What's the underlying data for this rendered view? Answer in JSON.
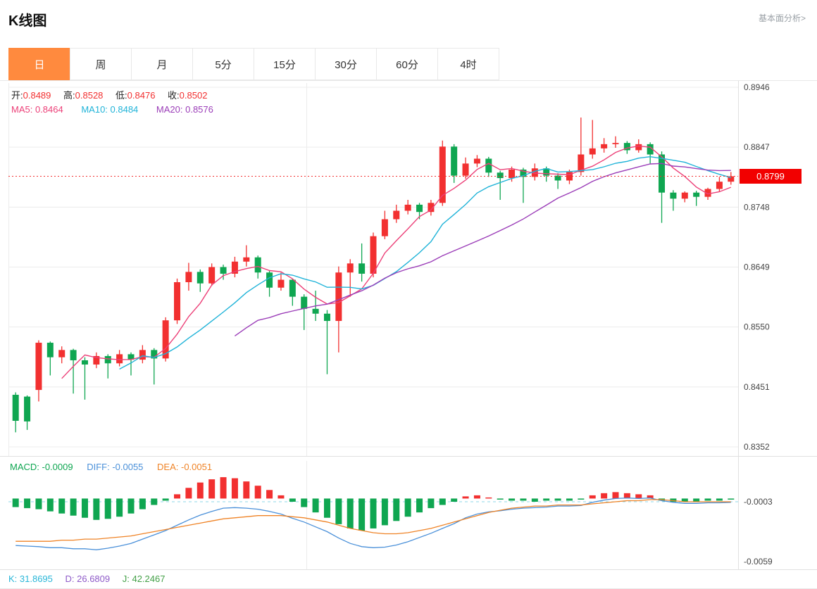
{
  "header": {
    "title": "K线图",
    "analysis_link": "基本面分析>"
  },
  "tabs": [
    {
      "label": "日",
      "active": true
    },
    {
      "label": "周",
      "active": false
    },
    {
      "label": "月",
      "active": false
    },
    {
      "label": "5分",
      "active": false
    },
    {
      "label": "15分",
      "active": false
    },
    {
      "label": "30分",
      "active": false
    },
    {
      "label": "60分",
      "active": false
    },
    {
      "label": "4时",
      "active": false
    }
  ],
  "ohlc_legend": {
    "open_label": "开:",
    "open": "0.8489",
    "high_label": "高:",
    "high": "0.8528",
    "low_label": "低:",
    "low": "0.8476",
    "close_label": "收:",
    "close": "0.8502"
  },
  "ma_legend": {
    "ma5": "MA5: 0.8464",
    "ma10": "MA10: 0.8484",
    "ma20": "MA20: 0.8576"
  },
  "macd_legend": {
    "macd": "MACD: -0.0009",
    "diff": "DIFF: -0.0055",
    "dea": "DEA: -0.0051"
  },
  "kdj_legend": {
    "k": "K: 31.8695",
    "d": "D: 26.6809",
    "j": "J: 42.2467"
  },
  "colors": {
    "up": "#f23030",
    "down": "#0fa651",
    "ma5": "#ec4078",
    "ma10": "#1fb3d8",
    "ma20": "#9b3db8",
    "diff": "#4a90d9",
    "dea": "#ef8326",
    "macd_text": "#0fa651",
    "price_tag": "#f20000",
    "price_line": "#f23030",
    "kdj_k": "#29b6d8",
    "kdj_d": "#8e5ac8",
    "kdj_j": "#43a047",
    "tab_active": "#ff8a3e",
    "grid": "#ececec",
    "border": "#e0e0e0",
    "axis_text": "#444444",
    "dash_ref": "#8fd8e8"
  },
  "chart_data": {
    "type": "candlestick",
    "title": "K线图",
    "panels": [
      "price+MA(5,10,20)",
      "MACD"
    ],
    "legend_position": "top-left",
    "grid": true,
    "main": {
      "y_ticks": [
        0.8946,
        0.8847,
        0.8748,
        0.8649,
        0.855,
        0.8451,
        0.8352
      ],
      "last_price": 0.8799,
      "ma_periods": [
        5,
        10,
        20
      ],
      "candles": [
        [
          0.8438,
          0.8442,
          0.8376,
          0.8395
        ],
        [
          0.8435,
          0.8437,
          0.838,
          0.8394
        ],
        [
          0.8446,
          0.8528,
          0.8427,
          0.8524
        ],
        [
          0.8524,
          0.8526,
          0.847,
          0.85
        ],
        [
          0.85,
          0.8518,
          0.849,
          0.8512
        ],
        [
          0.8512,
          0.8514,
          0.844,
          0.8495
        ],
        [
          0.8495,
          0.85,
          0.843,
          0.8488
        ],
        [
          0.8488,
          0.8508,
          0.8482,
          0.8502
        ],
        [
          0.8502,
          0.8505,
          0.8465,
          0.849
        ],
        [
          0.849,
          0.8512,
          0.8485,
          0.8505
        ],
        [
          0.8505,
          0.8508,
          0.847,
          0.8496
        ],
        [
          0.8496,
          0.852,
          0.849,
          0.8512
        ],
        [
          0.8512,
          0.8515,
          0.8455,
          0.8498
        ],
        [
          0.8498,
          0.8566,
          0.8493,
          0.8561
        ],
        [
          0.8561,
          0.863,
          0.8555,
          0.8624
        ],
        [
          0.8624,
          0.8656,
          0.861,
          0.8641
        ],
        [
          0.8641,
          0.8645,
          0.8608,
          0.8622
        ],
        [
          0.8622,
          0.8655,
          0.8618,
          0.8649
        ],
        [
          0.8649,
          0.8653,
          0.8628,
          0.8638
        ],
        [
          0.8638,
          0.8666,
          0.8632,
          0.8658
        ],
        [
          0.8658,
          0.8685,
          0.865,
          0.8665
        ],
        [
          0.8665,
          0.8668,
          0.863,
          0.864
        ],
        [
          0.864,
          0.8643,
          0.86,
          0.8615
        ],
        [
          0.8615,
          0.864,
          0.861,
          0.8628
        ],
        [
          0.8628,
          0.863,
          0.8585,
          0.86
        ],
        [
          0.86,
          0.8604,
          0.8545,
          0.858
        ],
        [
          0.858,
          0.861,
          0.856,
          0.8572
        ],
        [
          0.8572,
          0.8578,
          0.8472,
          0.856
        ],
        [
          0.856,
          0.865,
          0.8508,
          0.864
        ],
        [
          0.864,
          0.8662,
          0.86,
          0.8655
        ],
        [
          0.8655,
          0.8688,
          0.8625,
          0.8638
        ],
        [
          0.8638,
          0.8706,
          0.8632,
          0.87
        ],
        [
          0.87,
          0.8742,
          0.8695,
          0.8728
        ],
        [
          0.8728,
          0.8752,
          0.8722,
          0.8742
        ],
        [
          0.8742,
          0.876,
          0.8736,
          0.8752
        ],
        [
          0.8752,
          0.8755,
          0.8728,
          0.874
        ],
        [
          0.874,
          0.876,
          0.8734,
          0.8755
        ],
        [
          0.8755,
          0.8858,
          0.875,
          0.8848
        ],
        [
          0.8848,
          0.8852,
          0.8788,
          0.88
        ],
        [
          0.88,
          0.883,
          0.8795,
          0.882
        ],
        [
          0.882,
          0.8834,
          0.8814,
          0.8828
        ],
        [
          0.8828,
          0.8831,
          0.8798,
          0.8805
        ],
        [
          0.8805,
          0.8808,
          0.876,
          0.8796
        ],
        [
          0.8796,
          0.8815,
          0.879,
          0.881
        ],
        [
          0.881,
          0.8813,
          0.8755,
          0.8798
        ],
        [
          0.8798,
          0.882,
          0.8792,
          0.8812
        ],
        [
          0.8812,
          0.8815,
          0.879,
          0.88
        ],
        [
          0.88,
          0.8804,
          0.8778,
          0.8792
        ],
        [
          0.8792,
          0.881,
          0.8786,
          0.8806
        ],
        [
          0.8806,
          0.8896,
          0.88,
          0.8835
        ],
        [
          0.8835,
          0.8892,
          0.8828,
          0.8845
        ],
        [
          0.8845,
          0.8862,
          0.8838,
          0.8852
        ],
        [
          0.8852,
          0.8865,
          0.8846,
          0.8854
        ],
        [
          0.8854,
          0.8857,
          0.8836,
          0.8842
        ],
        [
          0.8842,
          0.886,
          0.8838,
          0.8852
        ],
        [
          0.8852,
          0.8855,
          0.882,
          0.8835
        ],
        [
          0.8835,
          0.884,
          0.8722,
          0.8772
        ],
        [
          0.8772,
          0.8776,
          0.8742,
          0.8762
        ],
        [
          0.8762,
          0.8774,
          0.8756,
          0.8772
        ],
        [
          0.8772,
          0.8775,
          0.875,
          0.8765
        ],
        [
          0.8765,
          0.878,
          0.876,
          0.8778
        ],
        [
          0.8778,
          0.8798,
          0.8774,
          0.879
        ],
        [
          0.879,
          0.8806,
          0.8785,
          0.8799
        ]
      ]
    },
    "macd": {
      "y_ticks": [
        -0.0003,
        -0.0059
      ],
      "unit": 0.0001,
      "reference_level": -0.0003,
      "hist": [
        -8,
        -9,
        -10,
        -12,
        -14,
        -16,
        -18,
        -20,
        -19,
        -17,
        -14,
        -10,
        -6,
        -2,
        4,
        10,
        15,
        18,
        20,
        19,
        16,
        12,
        8,
        3,
        -3,
        -8,
        -13,
        -18,
        -24,
        -28,
        -30,
        -28,
        -25,
        -21,
        -17,
        -13,
        -9,
        -6,
        -3,
        2,
        3,
        1,
        -1,
        -2,
        -2,
        -3,
        -2,
        -2,
        -2,
        -1,
        3,
        5,
        6,
        5,
        4,
        3,
        -2,
        -3,
        -3,
        -3,
        -2,
        -2,
        -1
      ],
      "diff": [
        -44,
        -44.5,
        -45,
        -46,
        -46,
        -47,
        -47,
        -48,
        -46.5,
        -44.5,
        -42,
        -38,
        -34,
        -30,
        -25,
        -20,
        -15.5,
        -12,
        -9,
        -8.5,
        -9,
        -10,
        -12,
        -14.5,
        -18.5,
        -22,
        -26.5,
        -31,
        -37,
        -42,
        -45,
        -46,
        -45.5,
        -43.5,
        -40.5,
        -36.5,
        -32.5,
        -28,
        -23.5,
        -18,
        -14.5,
        -12.5,
        -11.5,
        -10,
        -9,
        -8.5,
        -8,
        -7,
        -7,
        -6.5,
        -3.5,
        -1.5,
        0,
        0.5,
        0,
        0.5,
        -2,
        -3.5,
        -4.5,
        -4.5,
        -4,
        -4,
        -3.5
      ],
      "dea": [
        -40,
        -40,
        -40,
        -40,
        -39,
        -39,
        -38,
        -38,
        -37,
        -36,
        -35,
        -33,
        -31,
        -29,
        -27,
        -25,
        -23,
        -21,
        -19,
        -18,
        -17,
        -16,
        -16,
        -16,
        -17,
        -18,
        -20,
        -22,
        -25,
        -28,
        -30,
        -32,
        -33,
        -33,
        -32,
        -30,
        -28,
        -25,
        -22,
        -19,
        -16,
        -13,
        -11,
        -9,
        -8,
        -7,
        -7,
        -6,
        -6,
        -6,
        -5,
        -4,
        -3,
        -2,
        -2,
        -1,
        -1,
        -2,
        -3,
        -3,
        -3,
        -3,
        -3
      ]
    }
  }
}
